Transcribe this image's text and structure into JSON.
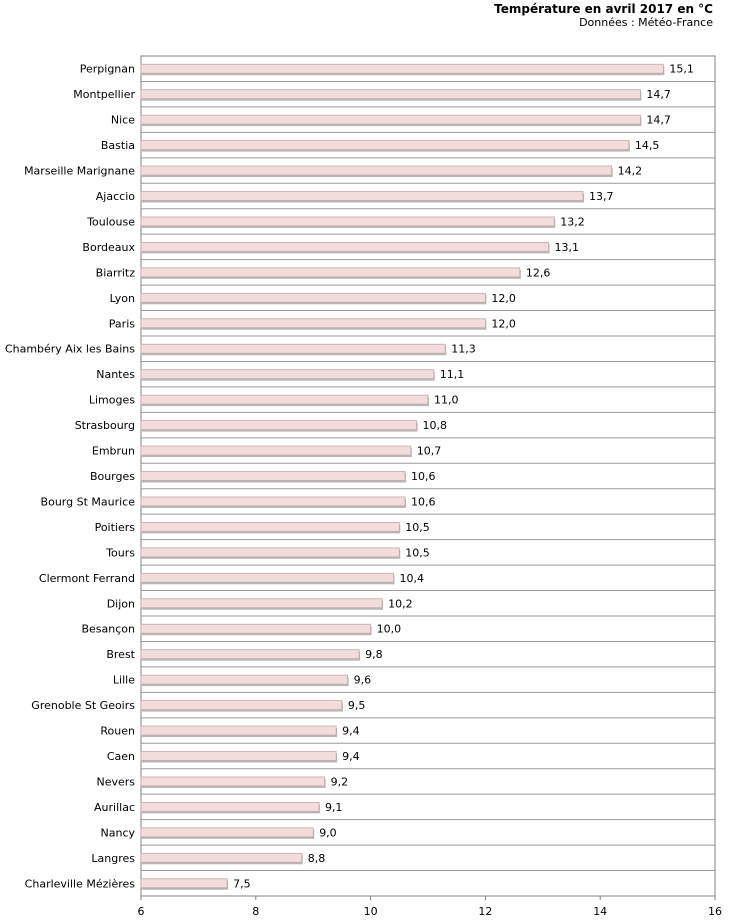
{
  "chart_data": {
    "type": "bar",
    "orientation": "horizontal",
    "title": "Température en avril 2017 en °C",
    "subtitle": "Données : Météo-France",
    "xlim": [
      6,
      16
    ],
    "xticks": [
      "6",
      "8",
      "10",
      "12",
      "14",
      "16"
    ],
    "bar_color": "#f2dcdc",
    "bar_edge_color": "#c4a8a8",
    "categories": [
      "Perpignan",
      "Montpellier",
      "Nice",
      "Bastia",
      "Marseille Marignane",
      "Ajaccio",
      "Toulouse",
      "Bordeaux",
      "Biarritz",
      "Lyon",
      "Paris",
      "Chambéry Aix les Bains",
      "Nantes",
      "Limoges",
      "Strasbourg",
      "Embrun",
      "Bourges",
      "Bourg St Maurice",
      "Poitiers",
      "Tours",
      "Clermont Ferrand",
      "Dijon",
      "Besançon",
      "Brest",
      "Lille",
      "Grenoble St Geoirs",
      "Rouen",
      "Caen",
      "Nevers",
      "Aurillac",
      "Nancy",
      "Langres",
      "Charleville Mézières"
    ],
    "values": [
      15.1,
      14.7,
      14.7,
      14.5,
      14.2,
      13.7,
      13.2,
      13.1,
      12.6,
      12.0,
      12.0,
      11.3,
      11.1,
      11.0,
      10.8,
      10.7,
      10.6,
      10.6,
      10.5,
      10.5,
      10.4,
      10.2,
      10.0,
      9.8,
      9.6,
      9.5,
      9.4,
      9.4,
      9.2,
      9.1,
      9.0,
      8.8,
      7.5
    ],
    "value_labels": [
      "15,1",
      "14,7",
      "14,7",
      "14,5",
      "14,2",
      "13,7",
      "13,2",
      "13,1",
      "12,6",
      "12,0",
      "12,0",
      "11,3",
      "11,1",
      "11,0",
      "10,8",
      "10,7",
      "10,6",
      "10,6",
      "10,5",
      "10,5",
      "10,4",
      "10,2",
      "10,0",
      "9,8",
      "9,6",
      "9,5",
      "9,4",
      "9,4",
      "9,2",
      "9,1",
      "9,0",
      "8,8",
      "7,5"
    ]
  }
}
